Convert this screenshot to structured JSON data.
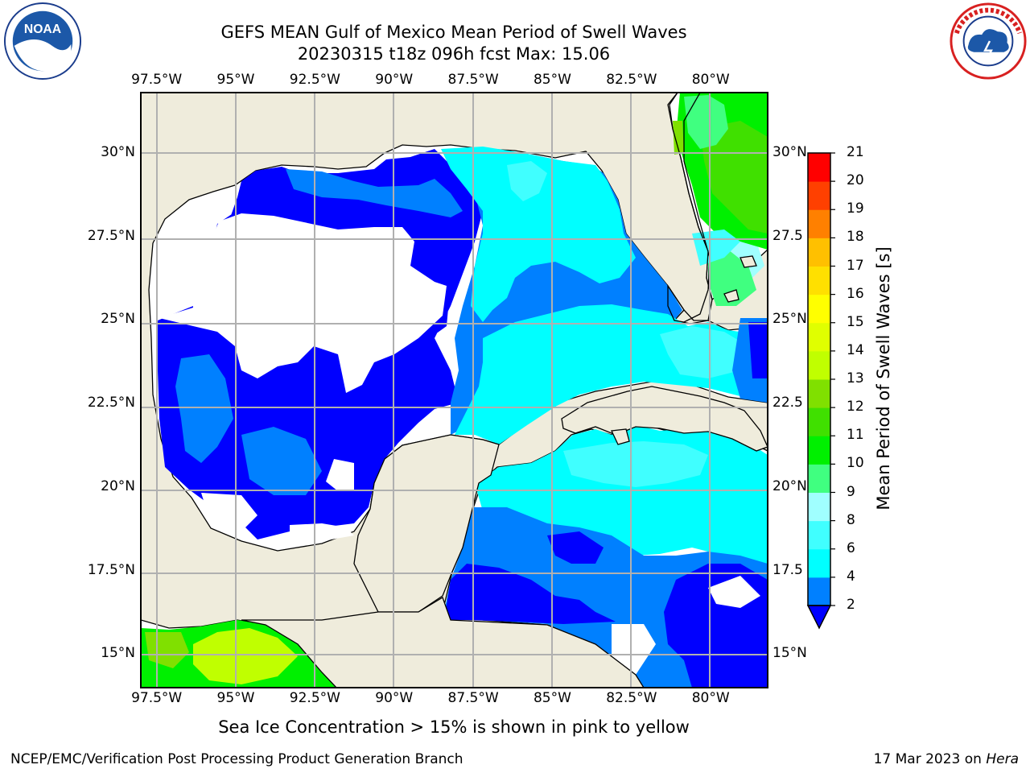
{
  "title_line1": "GEFS MEAN Gulf of Mexico Mean Period of Swell Waves",
  "title_line2": "20230315 t18z 096h fcst   Max: 15.06",
  "logos": {
    "left": {
      "name": "noaa-logo",
      "text": "NOAA",
      "ring_text": "NATIONAL OCEANIC AND ATMOSPHERIC ADMINISTRATION · U.S. DEPARTMENT OF COMMERCE"
    },
    "right": {
      "name": "nws-logo",
      "ring_text": "NATIONAL WEATHER SERVICE"
    }
  },
  "map": {
    "lon_labels": [
      "97.5°W",
      "95°W",
      "92.5°W",
      "90°W",
      "87.5°W",
      "85°W",
      "82.5°W",
      "80°W"
    ],
    "lat_labels_left": [
      "30°N",
      "27.5°N",
      "25°N",
      "22.5°N",
      "20°N",
      "17.5°N",
      "15°N"
    ],
    "lat_labels_right": [
      "30°N",
      "27.5",
      "25°N",
      "22.5",
      "20°N",
      "17.5",
      "15°N"
    ],
    "lon_values": [
      -97.5,
      -95,
      -92.5,
      -90,
      -87.5,
      -85,
      -82.5,
      -80
    ],
    "lat_values": [
      30,
      27.5,
      25,
      22.5,
      20,
      17.5,
      15
    ],
    "extent": {
      "lon_min": -98,
      "lon_max": -78.2,
      "lat_min": 14.0,
      "lat_max": 31.8
    },
    "land_color": "#efecdc",
    "ocean_nodata_color": "#ffffff",
    "grid_color": "#b0b0b0"
  },
  "colorbar": {
    "title": "Mean Period of Swell Waves [s]",
    "levels": [
      "2",
      "4",
      "6",
      "8",
      "9",
      "10",
      "11",
      "12",
      "13",
      "14",
      "15",
      "16",
      "17",
      "18",
      "19",
      "20",
      "21"
    ],
    "colors": [
      "#0000ff",
      "#0080ff",
      "#00ffff",
      "#40ffff",
      "#a0ffff",
      "#40ff80",
      "#00f000",
      "#40e000",
      "#80e000",
      "#c0ff00",
      "#e0ff00",
      "#ffff00",
      "#ffe000",
      "#ffc000",
      "#ff8000",
      "#ff4000",
      "#ff0000"
    ],
    "under_color": "#0000ff"
  },
  "subtitle": "Sea Ice Concentration > 15% is shown in pink to yellow",
  "footer_left": "NCEP/EMC/Verification Post Processing Product Generation Branch",
  "footer_right_prefix": "17 Mar 2023 on ",
  "footer_right_host": "Hera"
}
